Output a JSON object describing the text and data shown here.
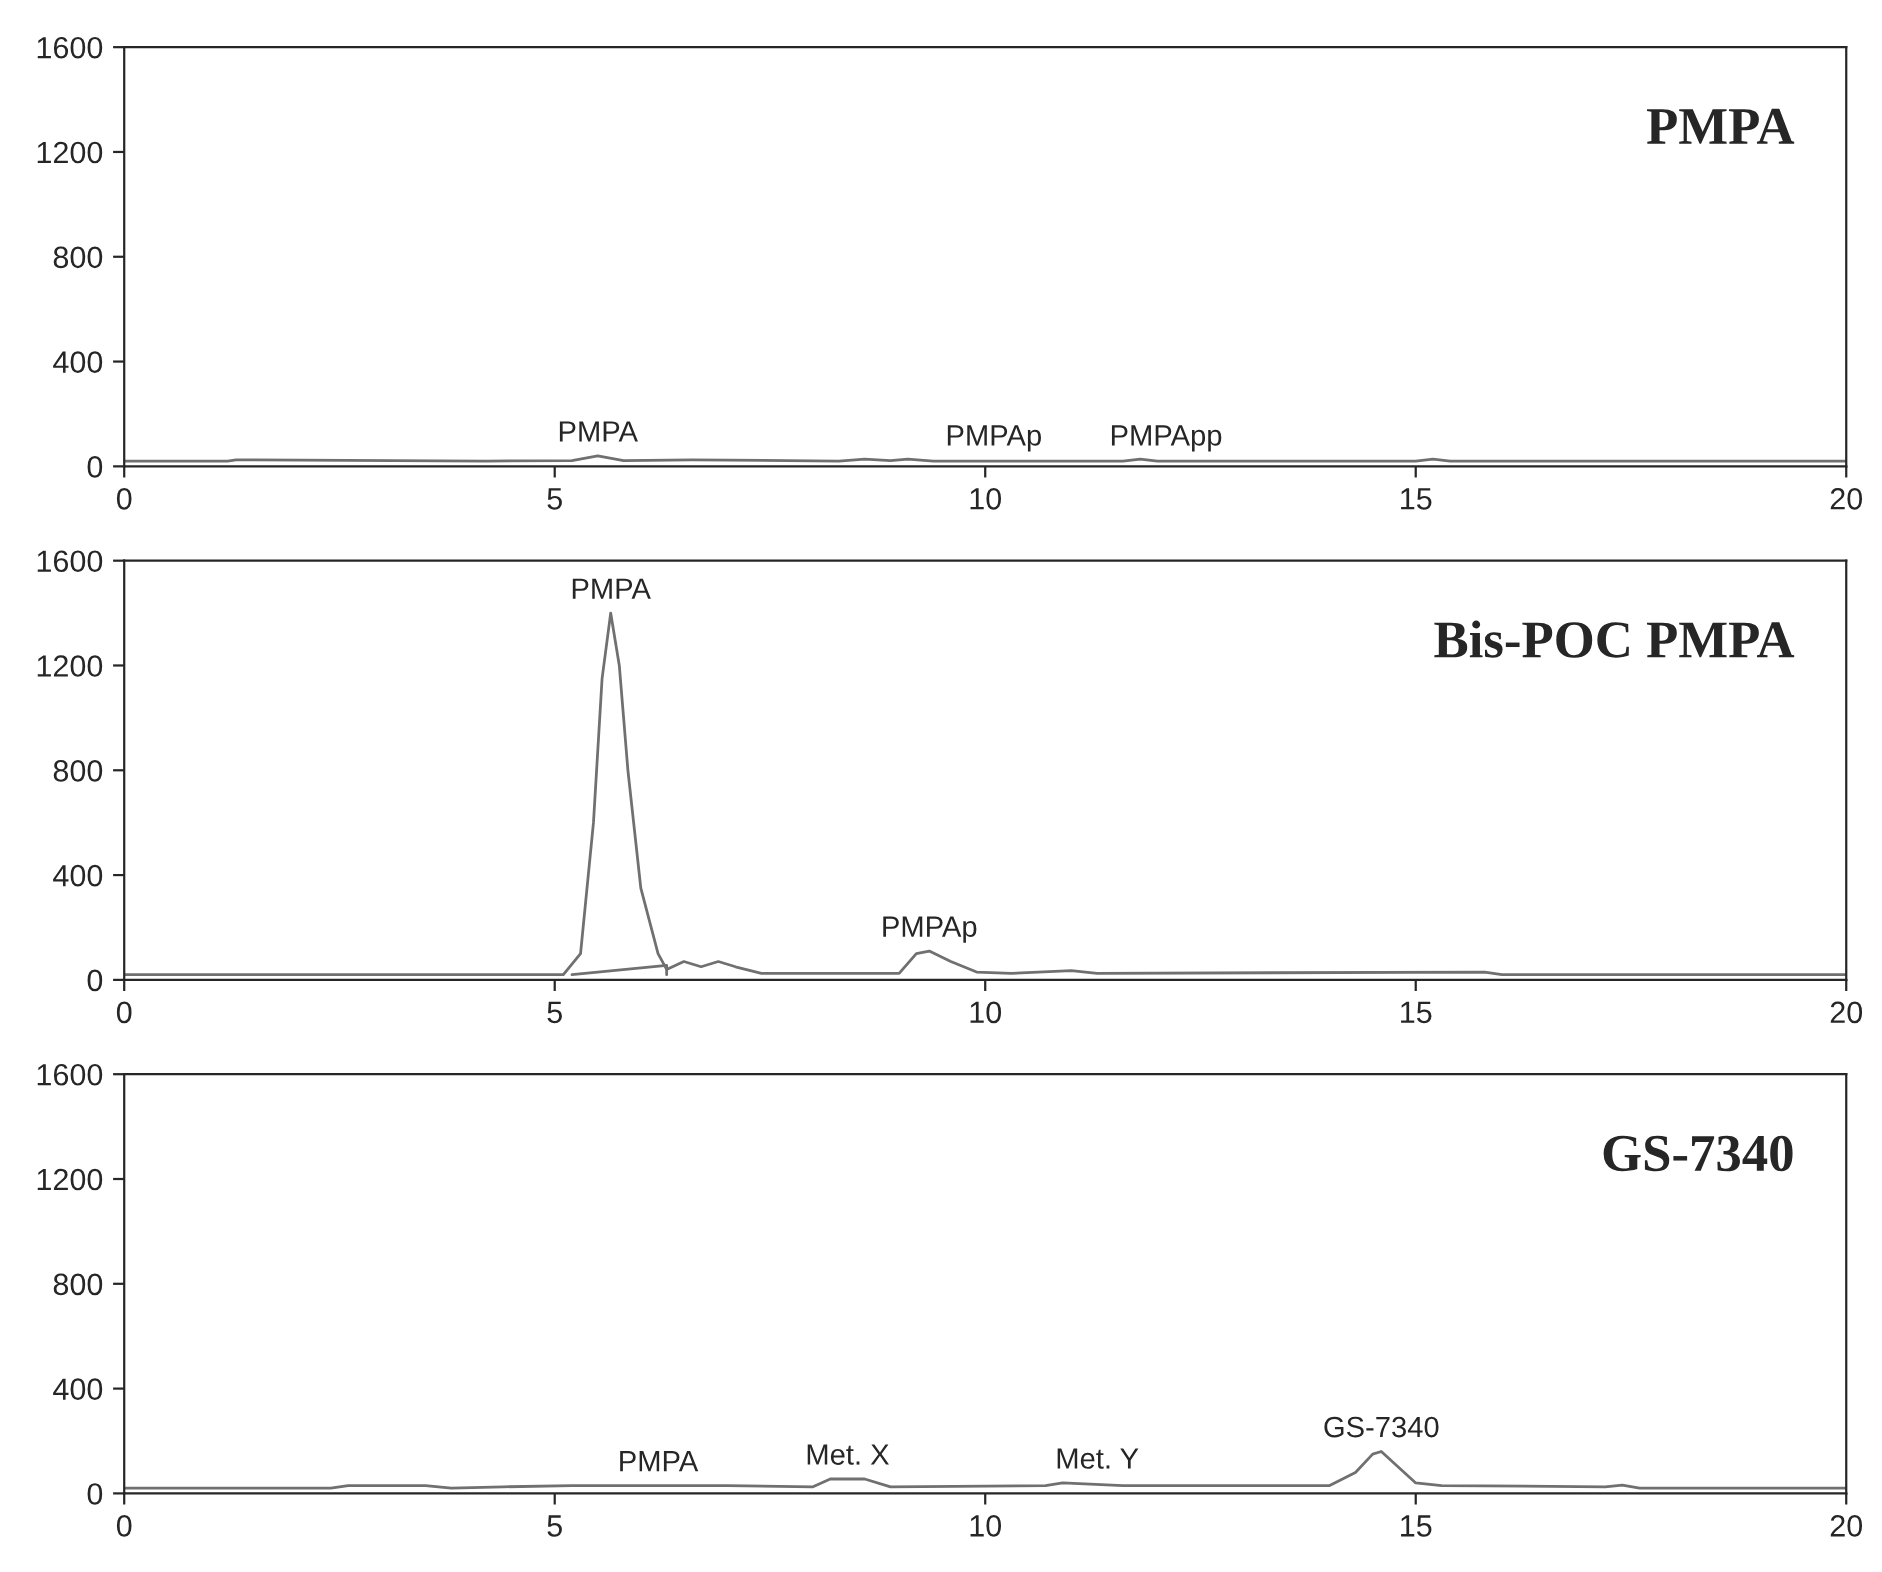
{
  "chart_data": [
    {
      "type": "line",
      "title": "PMPA",
      "xlim": [
        0,
        20
      ],
      "xticks": [
        0,
        5,
        10,
        15,
        20
      ],
      "ylim": [
        0,
        1600
      ],
      "yticks": [
        0,
        400,
        800,
        1200,
        1600
      ],
      "grid": false,
      "legend": false,
      "series": [
        {
          "color": "#707070",
          "x": [
            0,
            1.2,
            1.3,
            4.2,
            5.2,
            5.5,
            5.8,
            6.6,
            8.3,
            8.6,
            8.9,
            9.1,
            9.4,
            11.6,
            11.8,
            12.0,
            15.0,
            15.2,
            15.4,
            20
          ],
          "values": [
            20,
            20,
            25,
            20,
            22,
            40,
            22,
            25,
            20,
            28,
            22,
            28,
            20,
            20,
            28,
            20,
            20,
            28,
            20,
            20
          ]
        }
      ],
      "annotations": [
        {
          "text": "PMPA",
          "x": 5.5,
          "y": 40
        },
        {
          "text": "PMPAp",
          "x": 10.1,
          "y": 25
        },
        {
          "text": "PMPApp",
          "x": 12.1,
          "y": 25
        }
      ]
    },
    {
      "type": "line",
      "title": "Bis-POC PMPA",
      "xlim": [
        0,
        20
      ],
      "xticks": [
        0,
        5,
        10,
        15,
        20
      ],
      "ylim": [
        0,
        1600
      ],
      "yticks": [
        0,
        400,
        800,
        1200,
        1600
      ],
      "grid": false,
      "legend": false,
      "series": [
        {
          "color": "#707070",
          "x": [
            0,
            5.1,
            5.3,
            5.45,
            5.55,
            5.65,
            5.75,
            5.85,
            6.0,
            6.2,
            6.3,
            6.5,
            6.7,
            6.9,
            7.1,
            7.4,
            9.0,
            9.2,
            9.35,
            9.6,
            9.9,
            10.3,
            11.0,
            11.3,
            15.8,
            16.0,
            20
          ],
          "values": [
            20,
            20,
            100,
            600,
            1150,
            1400,
            1200,
            800,
            350,
            100,
            40,
            70,
            50,
            70,
            50,
            25,
            25,
            100,
            110,
            70,
            30,
            25,
            35,
            25,
            30,
            20,
            20
          ]
        },
        {
          "color": "#707070",
          "x": [
            5.2,
            6.3,
            6.3
          ],
          "values": [
            20,
            55,
            20
          ]
        }
      ],
      "annotations": [
        {
          "text": "PMPA",
          "x": 5.65,
          "y": 1400
        },
        {
          "text": "PMPAp",
          "x": 9.35,
          "y": 110
        }
      ]
    },
    {
      "type": "line",
      "title": "GS-7340",
      "xlim": [
        0,
        20
      ],
      "xticks": [
        0,
        5,
        10,
        15,
        20
      ],
      "ylim": [
        0,
        1600
      ],
      "yticks": [
        0,
        400,
        800,
        1200,
        1600
      ],
      "grid": false,
      "legend": false,
      "series": [
        {
          "color": "#707070",
          "x": [
            0,
            2.4,
            2.6,
            3.5,
            3.8,
            4.4,
            5.2,
            7.0,
            8.0,
            8.2,
            8.6,
            8.9,
            10.7,
            10.9,
            11.6,
            14.0,
            14.3,
            14.5,
            14.6,
            14.8,
            15.0,
            15.3,
            17.2,
            17.4,
            17.6,
            20
          ],
          "values": [
            20,
            20,
            30,
            30,
            20,
            25,
            30,
            30,
            25,
            55,
            55,
            25,
            30,
            40,
            30,
            30,
            80,
            150,
            160,
            100,
            40,
            30,
            25,
            32,
            20,
            20
          ]
        }
      ],
      "annotations": [
        {
          "text": "PMPA",
          "x": 6.2,
          "y": 30
        },
        {
          "text": "Met. X",
          "x": 8.4,
          "y": 55
        },
        {
          "text": "Met. Y",
          "x": 11.3,
          "y": 40
        },
        {
          "text": "GS-7340",
          "x": 14.6,
          "y": 160
        }
      ]
    }
  ]
}
